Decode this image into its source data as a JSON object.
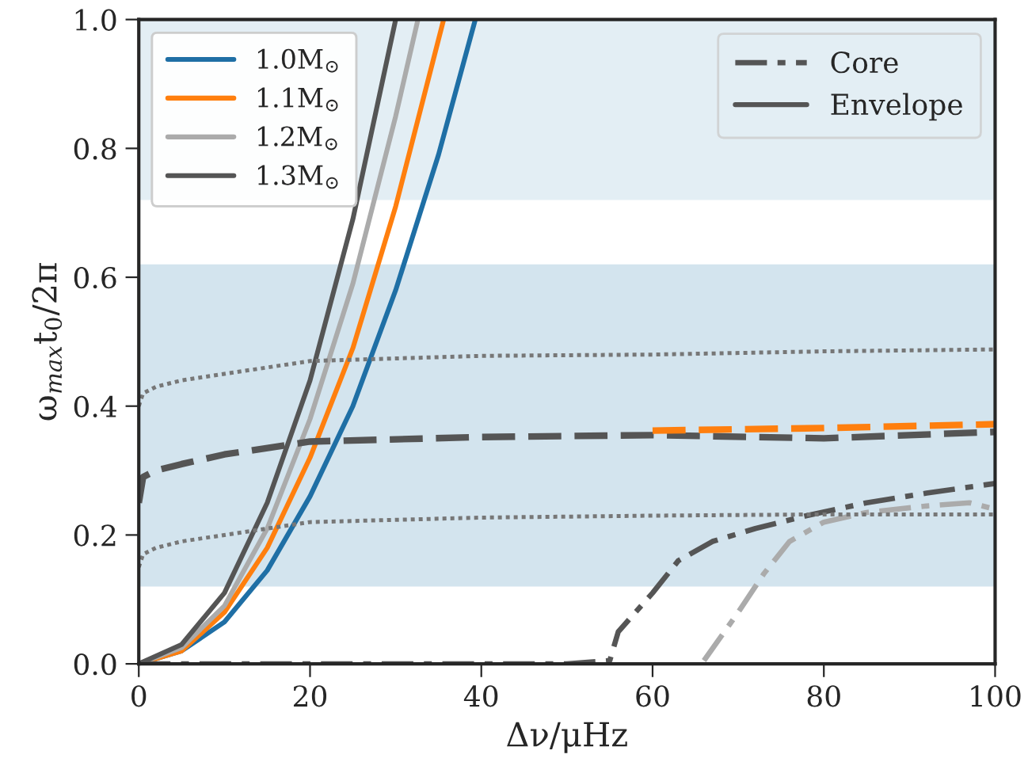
{
  "chart_data": {
    "type": "line",
    "xlabel": "Δν/μHz",
    "ylabel": "ω$_{max}$t$_{0}$/2π",
    "xlim": [
      0,
      100
    ],
    "xticks": [
      0,
      20,
      40,
      60,
      80,
      100
    ],
    "ylim": [
      0.0,
      1.0
    ],
    "yticks": [
      {
        "value": 0.0,
        "label": "0.0"
      },
      {
        "value": 0.2,
        "label": "0.2"
      },
      {
        "value": 0.4,
        "label": "0.4"
      },
      {
        "value": 0.6,
        "label": "0.6"
      },
      {
        "value": 0.8,
        "label": "0.8"
      },
      {
        "value": 1.0,
        "label": "1.0"
      }
    ],
    "grid": false,
    "legend": "top left",
    "annotations": [
      "Core",
      "Envelope"
    ],
    "bands": [
      {
        "axis": "y",
        "from": 0.12,
        "to": 0.62,
        "color": "#d3e4ee"
      },
      {
        "axis": "y",
        "from": 0.72,
        "to": 1.0,
        "color": "#e3eef4"
      }
    ],
    "series": [
      {
        "name": "1.0M$_{⊙}$",
        "color": "#1f6fa5",
        "line_style": "solid",
        "x": [
          0,
          5,
          10,
          15,
          20,
          25,
          30,
          35,
          39.3
        ],
        "values": [
          0.0,
          0.02,
          0.065,
          0.145,
          0.26,
          0.4,
          0.58,
          0.79,
          1.0
        ]
      },
      {
        "name": "1.1M$_{⊙}$",
        "color": "#ff7f0e",
        "line_style": "solid",
        "x": [
          0,
          5,
          10,
          15,
          20,
          25,
          30,
          35.6
        ],
        "values": [
          0.0,
          0.02,
          0.08,
          0.18,
          0.32,
          0.49,
          0.71,
          1.0
        ]
      },
      {
        "name": "1.2M$_{⊙}$",
        "color": "#ababab",
        "line_style": "solid",
        "x": [
          0,
          5,
          10,
          15,
          20,
          25,
          30,
          32.6
        ],
        "values": [
          0.0,
          0.025,
          0.09,
          0.21,
          0.38,
          0.59,
          0.85,
          1.0
        ]
      },
      {
        "name": "1.3M$_{⊙}$",
        "color": "#555555",
        "line_style": "solid",
        "x": [
          0,
          5,
          10,
          15,
          20,
          25,
          30
        ],
        "values": [
          0.0,
          0.03,
          0.11,
          0.25,
          0.44,
          0.69,
          1.0
        ]
      },
      {
        "color": "#555555",
        "line_style": "dashdot",
        "x": [
          0,
          50,
          55,
          56,
          60,
          63,
          67,
          72,
          78,
          85,
          92,
          100
        ],
        "values": [
          0.0,
          0.0,
          0.005,
          0.05,
          0.11,
          0.16,
          0.19,
          0.21,
          0.23,
          0.25,
          0.265,
          0.28
        ]
      },
      {
        "color": "#ababab",
        "line_style": "dashdot",
        "x": [
          66,
          70,
          73,
          76,
          80,
          85,
          92,
          97,
          100
        ],
        "values": [
          0.005,
          0.08,
          0.14,
          0.19,
          0.22,
          0.235,
          0.245,
          0.25,
          0.24
        ]
      },
      {
        "color": "#555555",
        "line_style": "dashed",
        "x": [
          0,
          0.5,
          2,
          5,
          10,
          20,
          40,
          60,
          80,
          100
        ],
        "values": [
          0.25,
          0.29,
          0.3,
          0.31,
          0.325,
          0.345,
          0.352,
          0.355,
          0.35,
          0.36
        ]
      },
      {
        "color": "#ff7f0e",
        "line_style": "dashed",
        "x": [
          60,
          80,
          100
        ],
        "values": [
          0.362,
          0.366,
          0.372
        ]
      },
      {
        "color": "#777777",
        "line_style": "dotted",
        "x": [
          0,
          0.5,
          2,
          5,
          10,
          20,
          40,
          60,
          80,
          100
        ],
        "values": [
          0.4,
          0.42,
          0.43,
          0.44,
          0.45,
          0.47,
          0.478,
          0.48,
          0.485,
          0.488
        ]
      },
      {
        "color": "#777777",
        "line_style": "dotted",
        "x": [
          0,
          0.5,
          2,
          5,
          10,
          20,
          40,
          60,
          80,
          100
        ],
        "values": [
          0.15,
          0.17,
          0.18,
          0.19,
          0.2,
          0.22,
          0.227,
          0.23,
          0.232,
          0.232
        ]
      }
    ]
  }
}
